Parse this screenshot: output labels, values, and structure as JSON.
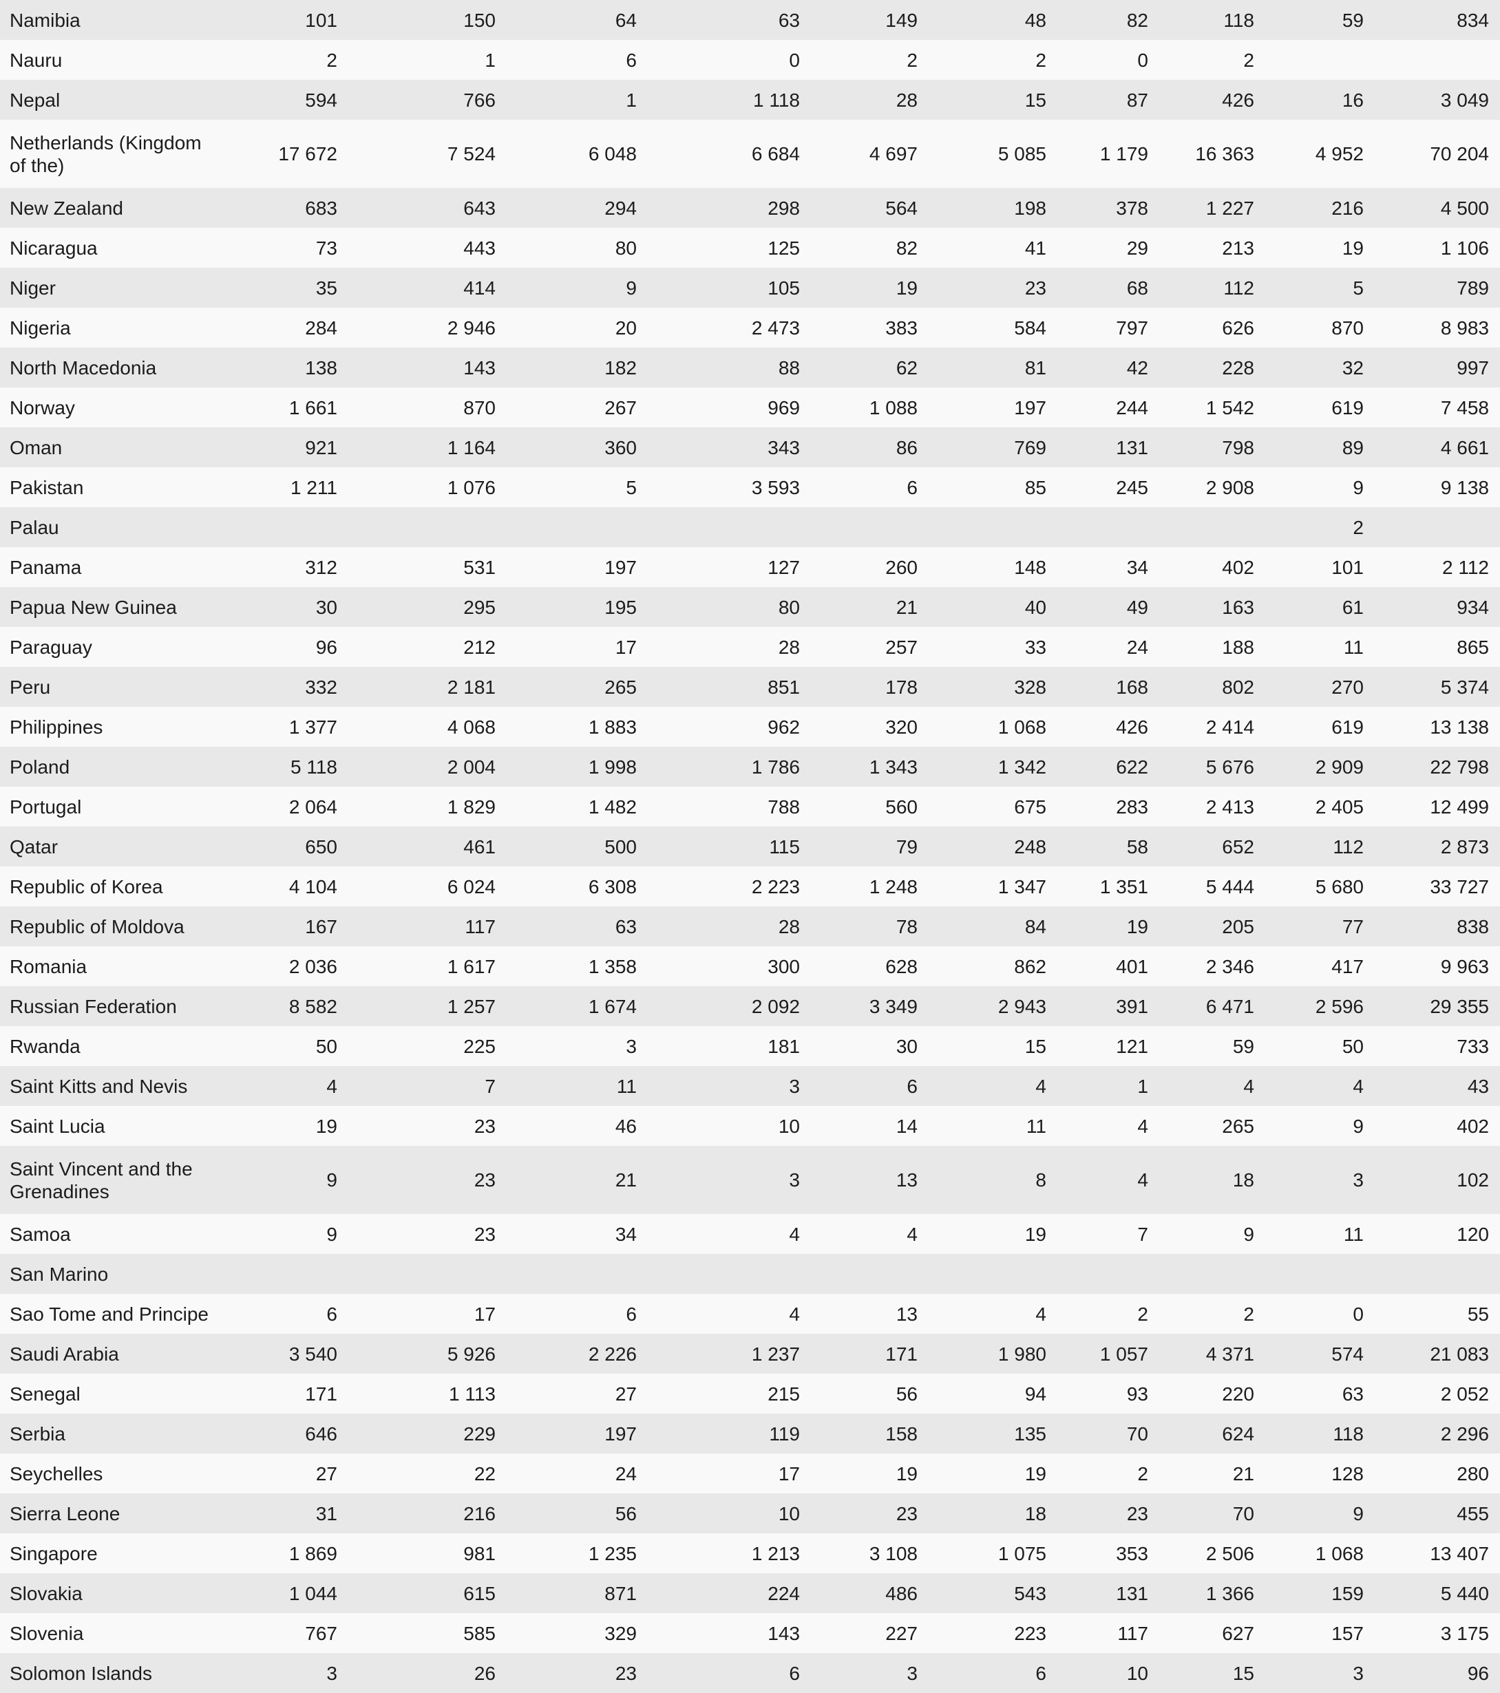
{
  "style": {
    "row_shade_color": "#e8e8e8",
    "row_plain_color": "#f9f9f9",
    "text_color": "#1c1c1c"
  },
  "table": {
    "rows": [
      {
        "country": "Namibia",
        "values": [
          "101",
          "150",
          "64",
          "63",
          "149",
          "48",
          "82",
          "118",
          "59",
          "834"
        ]
      },
      {
        "country": "Nauru",
        "values": [
          "2",
          "1",
          "6",
          "0",
          "2",
          "2",
          "0",
          "2",
          "",
          ""
        ]
      },
      {
        "country": "Nepal",
        "values": [
          "594",
          "766",
          "1",
          "1 118",
          "28",
          "15",
          "87",
          "426",
          "16",
          "3 049"
        ]
      },
      {
        "country": "Netherlands (Kingdom\nof the)",
        "values": [
          "17 672",
          "7 524",
          "6 048",
          "6 684",
          "4 697",
          "5 085",
          "1 179",
          "16 363",
          "4 952",
          "70 204"
        ]
      },
      {
        "country": "New Zealand",
        "values": [
          "683",
          "643",
          "294",
          "298",
          "564",
          "198",
          "378",
          "1 227",
          "216",
          "4 500"
        ]
      },
      {
        "country": "Nicaragua",
        "values": [
          "73",
          "443",
          "80",
          "125",
          "82",
          "41",
          "29",
          "213",
          "19",
          "1 106"
        ]
      },
      {
        "country": "Niger",
        "values": [
          "35",
          "414",
          "9",
          "105",
          "19",
          "23",
          "68",
          "112",
          "5",
          "789"
        ]
      },
      {
        "country": "Nigeria",
        "values": [
          "284",
          "2 946",
          "20",
          "2 473",
          "383",
          "584",
          "797",
          "626",
          "870",
          "8 983"
        ]
      },
      {
        "country": "North Macedonia",
        "values": [
          "138",
          "143",
          "182",
          "88",
          "62",
          "81",
          "42",
          "228",
          "32",
          "997"
        ]
      },
      {
        "country": "Norway",
        "values": [
          "1 661",
          "870",
          "267",
          "969",
          "1 088",
          "197",
          "244",
          "1 542",
          "619",
          "7 458"
        ]
      },
      {
        "country": "Oman",
        "values": [
          "921",
          "1 164",
          "360",
          "343",
          "86",
          "769",
          "131",
          "798",
          "89",
          "4 661"
        ]
      },
      {
        "country": "Pakistan",
        "values": [
          "1 211",
          "1 076",
          "5",
          "3 593",
          "6",
          "85",
          "245",
          "2 908",
          "9",
          "9 138"
        ]
      },
      {
        "country": "Palau",
        "values": [
          "",
          "",
          "",
          "",
          "",
          "",
          "",
          "",
          "2",
          ""
        ]
      },
      {
        "country": "Panama",
        "values": [
          "312",
          "531",
          "197",
          "127",
          "260",
          "148",
          "34",
          "402",
          "101",
          "2 112"
        ]
      },
      {
        "country": "Papua New Guinea",
        "values": [
          "30",
          "295",
          "195",
          "80",
          "21",
          "40",
          "49",
          "163",
          "61",
          "934"
        ]
      },
      {
        "country": "Paraguay",
        "values": [
          "96",
          "212",
          "17",
          "28",
          "257",
          "33",
          "24",
          "188",
          "11",
          "865"
        ]
      },
      {
        "country": "Peru",
        "values": [
          "332",
          "2 181",
          "265",
          "851",
          "178",
          "328",
          "168",
          "802",
          "270",
          "5 374"
        ]
      },
      {
        "country": "Philippines",
        "values": [
          "1 377",
          "4 068",
          "1 883",
          "962",
          "320",
          "1 068",
          "426",
          "2 414",
          "619",
          "13 138"
        ]
      },
      {
        "country": "Poland",
        "values": [
          "5 118",
          "2 004",
          "1 998",
          "1 786",
          "1 343",
          "1 342",
          "622",
          "5 676",
          "2 909",
          "22 798"
        ]
      },
      {
        "country": "Portugal",
        "values": [
          "2 064",
          "1 829",
          "1 482",
          "788",
          "560",
          "675",
          "283",
          "2 413",
          "2 405",
          "12 499"
        ]
      },
      {
        "country": "Qatar",
        "values": [
          "650",
          "461",
          "500",
          "115",
          "79",
          "248",
          "58",
          "652",
          "112",
          "2 873"
        ]
      },
      {
        "country": "Republic of Korea",
        "values": [
          "4 104",
          "6 024",
          "6 308",
          "2 223",
          "1 248",
          "1 347",
          "1 351",
          "5 444",
          "5 680",
          "33 727"
        ]
      },
      {
        "country": "Republic of Moldova",
        "values": [
          "167",
          "117",
          "63",
          "28",
          "78",
          "84",
          "19",
          "205",
          "77",
          "838"
        ]
      },
      {
        "country": "Romania",
        "values": [
          "2 036",
          "1 617",
          "1 358",
          "300",
          "628",
          "862",
          "401",
          "2 346",
          "417",
          "9 963"
        ]
      },
      {
        "country": "Russian Federation",
        "values": [
          "8 582",
          "1 257",
          "1 674",
          "2 092",
          "3 349",
          "2 943",
          "391",
          "6 471",
          "2 596",
          "29 355"
        ]
      },
      {
        "country": "Rwanda",
        "values": [
          "50",
          "225",
          "3",
          "181",
          "30",
          "15",
          "121",
          "59",
          "50",
          "733"
        ]
      },
      {
        "country": "Saint Kitts and Nevis",
        "values": [
          "4",
          "7",
          "11",
          "3",
          "6",
          "4",
          "1",
          "4",
          "4",
          "43"
        ]
      },
      {
        "country": "Saint Lucia",
        "values": [
          "19",
          "23",
          "46",
          "10",
          "14",
          "11",
          "4",
          "265",
          "9",
          "402"
        ]
      },
      {
        "country": "Saint Vincent and the\nGrenadines",
        "values": [
          "9",
          "23",
          "21",
          "3",
          "13",
          "8",
          "4",
          "18",
          "3",
          "102"
        ]
      },
      {
        "country": "Samoa",
        "values": [
          "9",
          "23",
          "34",
          "4",
          "4",
          "19",
          "7",
          "9",
          "11",
          "120"
        ]
      },
      {
        "country": "San Marino",
        "values": [
          "",
          "",
          "",
          "",
          "",
          "",
          "",
          "",
          "",
          ""
        ]
      },
      {
        "country": "Sao Tome and Principe",
        "values": [
          "6",
          "17",
          "6",
          "4",
          "13",
          "4",
          "2",
          "2",
          "0",
          "55"
        ]
      },
      {
        "country": "Saudi Arabia",
        "values": [
          "3 540",
          "5 926",
          "2 226",
          "1 237",
          "171",
          "1 980",
          "1 057",
          "4 371",
          "574",
          "21 083"
        ]
      },
      {
        "country": "Senegal",
        "values": [
          "171",
          "1 113",
          "27",
          "215",
          "56",
          "94",
          "93",
          "220",
          "63",
          "2 052"
        ]
      },
      {
        "country": "Serbia",
        "values": [
          "646",
          "229",
          "197",
          "119",
          "158",
          "135",
          "70",
          "624",
          "118",
          "2 296"
        ]
      },
      {
        "country": "Seychelles",
        "values": [
          "27",
          "22",
          "24",
          "17",
          "19",
          "19",
          "2",
          "21",
          "128",
          "280"
        ]
      },
      {
        "country": "Sierra Leone",
        "values": [
          "31",
          "216",
          "56",
          "10",
          "23",
          "18",
          "23",
          "70",
          "9",
          "455"
        ]
      },
      {
        "country": "Singapore",
        "values": [
          "1 869",
          "981",
          "1 235",
          "1 213",
          "3 108",
          "1 075",
          "353",
          "2 506",
          "1 068",
          "13 407"
        ]
      },
      {
        "country": "Slovakia",
        "values": [
          "1 044",
          "615",
          "871",
          "224",
          "486",
          "543",
          "131",
          "1 366",
          "159",
          "5 440"
        ]
      },
      {
        "country": "Slovenia",
        "values": [
          "767",
          "585",
          "329",
          "143",
          "227",
          "223",
          "117",
          "627",
          "157",
          "3 175"
        ]
      },
      {
        "country": "Solomon Islands",
        "values": [
          "3",
          "26",
          "23",
          "6",
          "3",
          "6",
          "10",
          "15",
          "3",
          "96"
        ]
      }
    ]
  }
}
